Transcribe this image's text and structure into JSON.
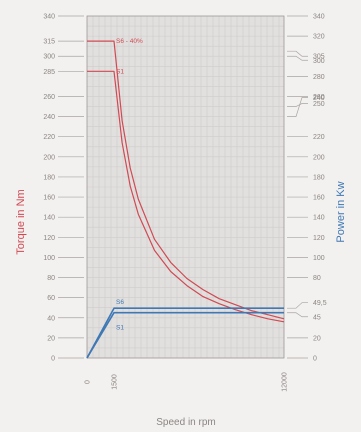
{
  "chart_data": {
    "type": "line",
    "xlabel": "Speed in rpm",
    "ylabel_left": "Torque in Nm",
    "ylabel_right": "Power in Kw",
    "x_ticks": [
      "0",
      "1500",
      "12000"
    ],
    "xlim": [
      0,
      12000
    ],
    "ylim_left": [
      0,
      340
    ],
    "ylim_right": [
      0,
      340
    ],
    "left_ticks": [
      "340",
      "315",
      "300",
      "285",
      "260",
      "240",
      "220",
      "200",
      "180",
      "160",
      "140",
      "120",
      "100",
      "80",
      "60",
      "40",
      "20",
      "0"
    ],
    "right_ticks": [
      "340",
      "320",
      "305",
      "300",
      "280",
      "260",
      "250",
      "240",
      "220",
      "200",
      "180",
      "160",
      "140",
      "120",
      "100",
      "80",
      "49,5",
      "45",
      "20",
      "0"
    ],
    "grid": true,
    "colors": {
      "torque": "#d04a53",
      "power": "#3f78b4",
      "grid": "#cfcccb",
      "background": "#f3f1ef",
      "plot_background": "#e2e0df"
    },
    "series": [
      {
        "name": "S6 - 40%",
        "axis": "left",
        "kind": "torque",
        "x": [
          0,
          1500,
          2000,
          2500,
          3000,
          4000,
          5000,
          6000,
          7000,
          8000,
          9000,
          10000,
          11000,
          12000
        ],
        "values": [
          315,
          315,
          236,
          189,
          158,
          118,
          95,
          79,
          68,
          59,
          53,
          47,
          43,
          39
        ]
      },
      {
        "name": "S1",
        "axis": "left",
        "kind": "torque",
        "x": [
          0,
          1500,
          2000,
          2500,
          3000,
          4000,
          5000,
          6000,
          7000,
          8000,
          9000,
          10000,
          11000,
          12000
        ],
        "values": [
          285,
          285,
          214,
          171,
          143,
          107,
          86,
          72,
          61,
          54,
          48,
          43,
          39,
          36
        ]
      },
      {
        "name": "S6",
        "axis": "right",
        "kind": "power",
        "x": [
          0,
          1500,
          12000
        ],
        "values": [
          0,
          49.5,
          49.5
        ]
      },
      {
        "name": "S1",
        "axis": "right",
        "kind": "power",
        "x": [
          0,
          1500,
          12000
        ],
        "values": [
          0,
          45,
          45
        ]
      }
    ]
  }
}
